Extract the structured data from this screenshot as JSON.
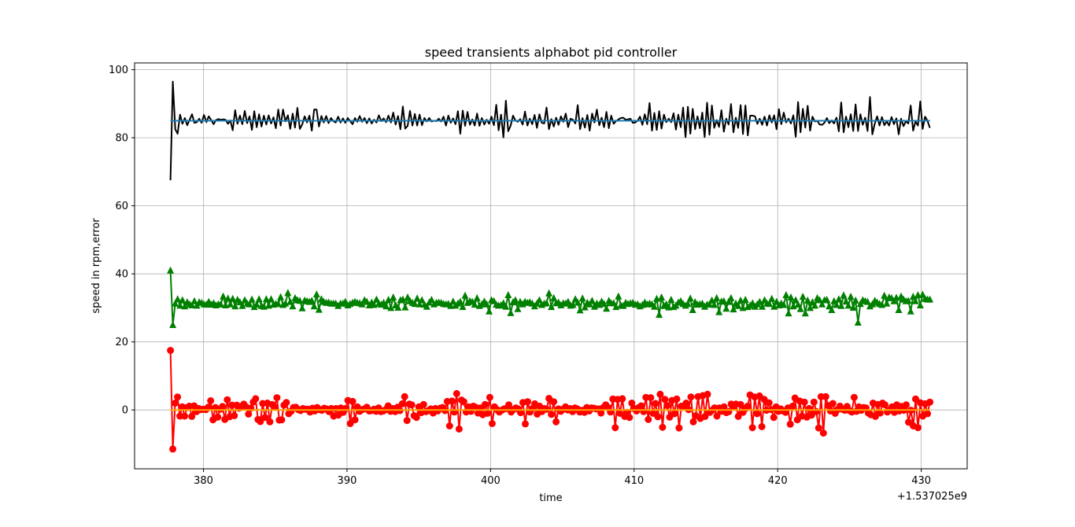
{
  "chart_data": {
    "type": "line",
    "title": "speed transients alphabot pid controller",
    "xlabel": "time",
    "ylabel": "speed in rpm,error",
    "offset_label": "+1.537025e9",
    "xlim": [
      375.2,
      433.2
    ],
    "ylim": [
      -17.3,
      102
    ],
    "xticks": [
      380,
      390,
      400,
      410,
      420,
      430
    ],
    "yticks": [
      0,
      20,
      40,
      60,
      80,
      100
    ],
    "grid": true,
    "series": [
      {
        "color": "#000000",
        "marker": "none",
        "x_start": 377.7,
        "x_end": 430.6,
        "values": [
          67.5,
          96.5,
          82.5,
          81.2,
          86.8,
          84.1,
          85.8,
          83.7,
          85.3,
          86.9,
          84.4,
          84.6,
          85.6,
          84.4,
          86.7,
          84.6,
          86.3,
          85.2,
          84.0,
          85.2,
          85.5,
          85.3,
          85.4,
          85.3,
          84.1,
          85.1,
          82.2,
          88.1,
          84.1,
          86.5,
          84.0,
          87.9,
          84.3,
          86.3,
          82.3,
          87.8,
          83.1,
          86.9,
          83.3,
          86.5,
          83.9,
          86.6,
          84.2,
          86.0,
          82.8,
          88.3,
          83.6,
          88.3,
          84.8,
          86.6,
          82.6,
          87.1,
          83.0,
          88.8,
          82.6,
          83.9,
          86.3,
          84.5,
          86.5,
          82.1,
          88.3,
          88.3,
          83.3,
          86.4,
          84.5,
          86.4,
          84.3,
          85.8,
          84.9,
          84.5,
          86.2,
          84.5,
          85.7,
          84.4,
          85.8,
          84.9,
          84.0,
          85.8,
          84.7,
          86.4,
          84.7,
          85.8,
          84.3,
          85.7,
          84.2,
          85.3,
          84.5,
          86.6,
          84.9,
          85.7,
          84.6,
          86.5,
          84.5,
          87.4,
          83.9,
          86.4,
          82.5,
          89.2,
          82.7,
          83.5,
          87.9,
          83.6,
          87.0,
          83.6,
          86.8,
          83.7,
          85.8,
          84.8,
          85.8,
          84.8,
          85.0,
          84.9,
          85.6,
          84.8,
          86.2,
          83.6,
          86.5,
          84.4,
          85.7,
          84.0,
          87.8,
          81.2,
          88.0,
          83.5,
          87.6,
          83.8,
          85.4,
          83.6,
          87.1,
          83.5,
          85.8,
          83.9,
          85.3,
          84.1,
          86.2,
          83.7,
          89.7,
          82.2,
          86.8,
          80.1,
          90.9,
          81.9,
          83.6,
          86.5,
          85.1,
          84.7,
          85.5,
          83.9,
          87.7,
          83.6,
          85.6,
          84.0,
          86.7,
          82.9,
          86.9,
          84.4,
          84.2,
          88.9,
          82.5,
          85.5,
          83.3,
          85.9,
          83.8,
          86.3,
          84.7,
          87.1,
          83.1,
          85.6,
          85.3,
          84.2,
          89.6,
          82.5,
          85.8,
          83.0,
          86.7,
          82.1,
          87.1,
          84.5,
          88.3,
          83.7,
          85.9,
          83.1,
          87.6,
          82.8,
          86.5,
          84.1,
          84.9,
          85.4,
          85.8,
          85.9,
          85.3,
          85.4,
          85.6,
          84.4,
          84.5,
          85.0,
          86.2,
          83.8,
          86.9,
          84.0,
          90.2,
          82.1,
          87.3,
          82.3,
          87.8,
          82.7,
          86.8,
          84.6,
          85.6,
          84.6,
          87.2,
          82.4,
          86.8,
          83.1,
          88.9,
          80.2,
          89.1,
          81.2,
          88.5,
          82.5,
          86.3,
          82.8,
          87.4,
          80.2,
          90.3,
          80.9,
          89.5,
          82.9,
          85.2,
          83.2,
          88.1,
          81.8,
          85.6,
          83.9,
          89.9,
          81.6,
          85.9,
          82.9,
          89.6,
          81.1,
          89.5,
          80.7,
          86.5,
          86.5,
          86.3,
          84.1,
          85.6,
          83.8,
          86.2,
          83.6,
          86.6,
          84.5,
          86.6,
          82.5,
          88.4,
          84.0,
          87.4,
          84.5,
          85.6,
          84.2,
          86.6,
          80.3,
          90.5,
          81.6,
          88.5,
          83.0,
          89.4,
          82.1,
          86.2,
          84.8,
          85.0,
          83.9,
          83.8,
          84.4,
          85.8,
          84.3,
          85.1,
          84.2,
          85.9,
          81.9,
          90.4,
          81.6,
          86.2,
          83.1,
          86.9,
          82.0,
          89.8,
          82.0,
          86.9,
          83.8,
          85.9,
          82.0,
          92.0,
          81.0,
          84.2,
          86.3,
          83.6,
          86.1,
          83.7,
          84.8,
          83.6,
          86.1,
          84.0,
          85.7,
          81.0,
          85.6,
          83.4,
          84.9,
          84.2,
          89.5,
          82.1,
          84.8,
          83.6,
          90.7,
          82.6,
          86.2,
          85.0,
          82.9
        ]
      },
      {
        "color": "#1f77b4",
        "marker": "none",
        "x_start": 377.7,
        "x_end": 430.6,
        "values": [
          85,
          85
        ]
      },
      {
        "color": "#008000",
        "marker": "triangle",
        "x_start": 377.7,
        "x_end": 430.6,
        "values": [
          41.0,
          25.0,
          31.3,
          32.6,
          30.7,
          32.3,
          30.5,
          31.7,
          31.1,
          30.8,
          32.0,
          30.7,
          31.7,
          31.5,
          31.1,
          31.0,
          31.8,
          31.0,
          31.4,
          30.8,
          31.1,
          31.1,
          33.4,
          30.8,
          32.8,
          31.1,
          32.7,
          30.5,
          32.4,
          31.7,
          30.6,
          32.3,
          31.3,
          31.1,
          32.5,
          30.3,
          31.0,
          32.6,
          30.6,
          30.4,
          32.6,
          30.7,
          32.6,
          31.0,
          31.2,
          31.2,
          33.2,
          30.9,
          31.3,
          34.4,
          31.8,
          30.5,
          32.9,
          32.3,
          32.1,
          29.9,
          32.2,
          32.0,
          31.8,
          32.1,
          30.5,
          34.0,
          29.5,
          32.6,
          31.8,
          31.5,
          31.6,
          31.3,
          31.3,
          31.3,
          30.6,
          31.3,
          31.3,
          31.8,
          30.8,
          31.2,
          31.5,
          31.8,
          31.5,
          31.4,
          31.1,
          32.3,
          31.8,
          30.8,
          31.6,
          30.9,
          32.5,
          31.3,
          31.0,
          31.5,
          30.5,
          32.4,
          30.0,
          33.1,
          30.8,
          30.1,
          32.3,
          32.5,
          30.2,
          33.1,
          32.0,
          31.5,
          31.2,
          32.8,
          31.1,
          32.3,
          31.0,
          30.4,
          31.6,
          32.4,
          31.1,
          31.5,
          31.6,
          31.5,
          31.2,
          31.1,
          31.2,
          30.6,
          31.9,
          30.7,
          31.3,
          31.8,
          30.3,
          33.6,
          31.5,
          32.0,
          31.8,
          31.0,
          32.9,
          30.6,
          31.1,
          31.9,
          31.1,
          29.0,
          32.3,
          32.0,
          31.0,
          30.7,
          30.8,
          31.4,
          30.4,
          33.8,
          28.5,
          31.7,
          32.3,
          29.7,
          31.8,
          31.1,
          31.8,
          31.5,
          31.7,
          31.3,
          30.5,
          31.3,
          32.3,
          30.9,
          31.3,
          31.4,
          34.3,
          30.3,
          32.9,
          31.4,
          31.6,
          30.8,
          31.4,
          31.3,
          31.8,
          30.7,
          30.9,
          32.6,
          31.6,
          29.3,
          32.8,
          30.2,
          31.5,
          31.1,
          32.1,
          30.4,
          31.3,
          30.9,
          31.9,
          31.2,
          29.8,
          32.1,
          31.4,
          31.4,
          30.3,
          33.4,
          30.8,
          30.6,
          31.5,
          31.2,
          31.4,
          31.5,
          31.0,
          31.1,
          30.5,
          30.9,
          31.6,
          31.1,
          31.3,
          31.1,
          30.4,
          32.7,
          28.0,
          33.1,
          30.6,
          31.1,
          30.2,
          32.4,
          30.3,
          30.7,
          31.6,
          32.0,
          31.2,
          30.7,
          31.2,
          32.8,
          29.4,
          31.7,
          31.0,
          31.1,
          31.3,
          30.4,
          31.0,
          31.1,
          32.2,
          30.9,
          32.9,
          28.8,
          31.9,
          32.0,
          29.8,
          31.8,
          32.9,
          29.6,
          31.3,
          30.6,
          32.2,
          30.0,
          32.4,
          30.3,
          30.7,
          31.4,
          30.4,
          31.1,
          31.8,
          30.4,
          32.3,
          31.3,
          31.2,
          32.7,
          30.4,
          31.8,
          30.8,
          31.3,
          30.9,
          33.8,
          28.4,
          33.1,
          30.5,
          32.3,
          31.0,
          29.7,
          33.3,
          28.4,
          32.2,
          30.0,
          31.7,
          30.7,
          32.9,
          32.3,
          31.1,
          32.3,
          32.4,
          30.5,
          29.4,
          32.0,
          30.9,
          32.6,
          30.6,
          33.7,
          31.9,
          30.7,
          33.3,
          30.1,
          32.2,
          25.7,
          31.2,
          32.3,
          32.0,
          31.8,
          30.5,
          31.1,
          32.1,
          31.6,
          31.2,
          30.9,
          33.6,
          31.3,
          33.1,
          32.9,
          32.0,
          33.0,
          29.4,
          33.4,
          32.5,
          32.0,
          32.1,
          29.0,
          33.3,
          32.0,
          33.8,
          30.8,
          33.9,
          32.7,
          32.5,
          32.5
        ]
      },
      {
        "color": "#ff0000",
        "marker": "circle",
        "x_start": 377.7,
        "x_end": 430.6,
        "values": [
          17.5,
          -11.5,
          2.0,
          3.8,
          -1.8,
          0.9,
          -1.8,
          0.7,
          1.1,
          -1.9,
          1.2,
          -0.5,
          0.4,
          0.1,
          0.2,
          0.1,
          0.8,
          2.7,
          -2.9,
          0.7,
          -2.1,
          0.2,
          1.0,
          -2.8,
          3.0,
          -2.0,
          1.4,
          -1.7,
          1.4,
          0.5,
          1.1,
          1.7,
          0.9,
          -1.2,
          0.5,
          2.3,
          3.3,
          -2.8,
          -3.4,
          1.9,
          -2.2,
          2.0,
          -3.5,
          1.6,
          0.8,
          3.6,
          -3.0,
          -2.9,
          1.4,
          2.2,
          -1.1,
          -0.4,
          0.7,
          0.8,
          0.1,
          -0.2,
          0.4,
          0.2,
          0.2,
          -0.6,
          0.5,
          -0.3,
          0.7,
          0.1,
          -0.1,
          0.5,
          0.3,
          -0.5,
          0.4,
          -1.8,
          0.4,
          -1.5,
          0.6,
          -0.7,
          0.4,
          2.8,
          -4.0,
          2.5,
          -2.9,
          0.9,
          -0.4,
          0.1,
          0.3,
          0.8,
          -0.3,
          -0.2,
          0.2,
          -0.4,
          0.6,
          -0.5,
          -0.3,
          0.1,
          1.2,
          -0.4,
          0.4,
          -0.5,
          0.8,
          -0.2,
          1.8,
          3.9,
          -3.1,
          1.7,
          1.5,
          -1.7,
          -2.2,
          0.9,
          -0.8,
          1.6,
          -0.5,
          -0.2,
          0.3,
          -0.9,
          0.4,
          -0.3,
          0.5,
          0.7,
          -0.2,
          2.5,
          -4.7,
          2.6,
          -0.6,
          4.8,
          -5.6,
          2.9,
          2.4,
          -0.6,
          0.9,
          -0.4,
          1.1,
          0.8,
          -0.9,
          0.6,
          -1.4,
          1.6,
          -1.0,
          3.7,
          -4.0,
          0.9,
          0.1,
          -0.6,
          -0.1,
          0.3,
          0.4,
          1.5,
          -0.6,
          0.1,
          0.6,
          0.3,
          -0.8,
          2.2,
          -4.1,
          2.4,
          -0.6,
          0.4,
          1.8,
          -1.2,
          1.1,
          -0.5,
          0.4,
          0.2,
          3.4,
          -1.3,
          2.4,
          -3.5,
          0.3,
          -0.4,
          0.2,
          0.9,
          0.0,
          0.4,
          -0.5,
          0.6,
          0.3,
          -0.6,
          -0.1,
          -0.7,
          0.7,
          -0.3,
          0.6,
          0.5,
          0.3,
          0.3,
          -0.9,
          0.7,
          1.5,
          0.7,
          -0.6,
          3.2,
          -5.2,
          3.1,
          -1.0,
          3.3,
          -1.9,
          -0.7,
          -2.2,
          2.0,
          0.4,
          -0.3,
          0.7,
          1.2,
          -0.5,
          3.7,
          -2.8,
          3.6,
          -1.0,
          1.9,
          -2.0,
          4.6,
          -5.1,
          3.1,
          1.3,
          -2.1,
          2.8,
          -1.1,
          3.2,
          -5.3,
          1.1,
          0.9,
          2.0,
          0.1,
          3.8,
          -3.5,
          -1.7,
          3.9,
          -2.5,
          4.2,
          -1.9,
          4.6,
          -0.7,
          -0.1,
          0.6,
          -1.8,
          0.6,
          -0.4,
          0.9,
          -0.8,
          -0.5,
          1.7,
          1.0,
          1.7,
          -1.9,
          1.6,
          -0.7,
          0.4,
          1.1,
          4.4,
          -5.2,
          3.8,
          -1.1,
          4.1,
          -4.9,
          3.1,
          -0.1,
          2.1,
          0.1,
          -2.2,
          0.9,
          -0.4,
          0.3,
          -0.3,
          -0.7,
          0.6,
          -4.2,
          1.1,
          3.5,
          -2.9,
          2.6,
          -1.8,
          2.3,
          -2.1,
          0.4,
          -1.5,
          2.3,
          -0.5,
          -5.3,
          3.9,
          -6.8,
          3.9,
          1.3,
          -0.3,
          1.9,
          -1.0,
          0.1,
          1.1,
          0.2,
          -0.1,
          1.0,
          -0.2,
          -0.6,
          3.7,
          -0.4,
          0.9,
          -0.1,
          0.7,
          0.6,
          -0.9,
          -1.4,
          2.0,
          -1.9,
          1.6,
          -0.9,
          2.0,
          1.5,
          -0.6,
          0.0,
          0.9,
          -0.7,
          1.5,
          -0.3,
          1.0,
          -0.1,
          1.5,
          -3.6,
          -0.1,
          -4.7,
          3.2,
          -5.2,
          2.1,
          -1.8,
          1.8,
          -1.1,
          2.3
        ]
      },
      {
        "color": "#ffa500",
        "marker": "none",
        "x_start": 377.7,
        "x_end": 430.6,
        "values": [
          0,
          0
        ]
      }
    ]
  }
}
